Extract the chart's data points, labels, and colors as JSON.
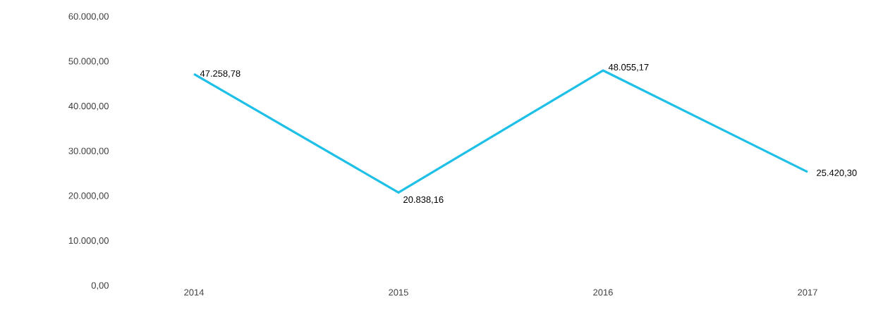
{
  "chart_data": {
    "type": "line",
    "categories": [
      "2014",
      "2015",
      "2016",
      "2017"
    ],
    "values": [
      47258.78,
      20838.16,
      48055.17,
      25420.3
    ],
    "value_labels": [
      "47.258,78",
      "20.838,16",
      "48.055,17",
      "25.420,30"
    ],
    "color": "#1ec0e8",
    "ylim": [
      0,
      60000
    ],
    "yticks": [
      {
        "value": 0,
        "label": "0,00"
      },
      {
        "value": 10000,
        "label": "10.000,00"
      },
      {
        "value": 20000,
        "label": "20.000,00"
      },
      {
        "value": 30000,
        "label": "30.000,00"
      },
      {
        "value": 40000,
        "label": "40.000,00"
      },
      {
        "value": 50000,
        "label": "50.000,00"
      },
      {
        "value": 60000,
        "label": "60.000,00"
      }
    ]
  }
}
